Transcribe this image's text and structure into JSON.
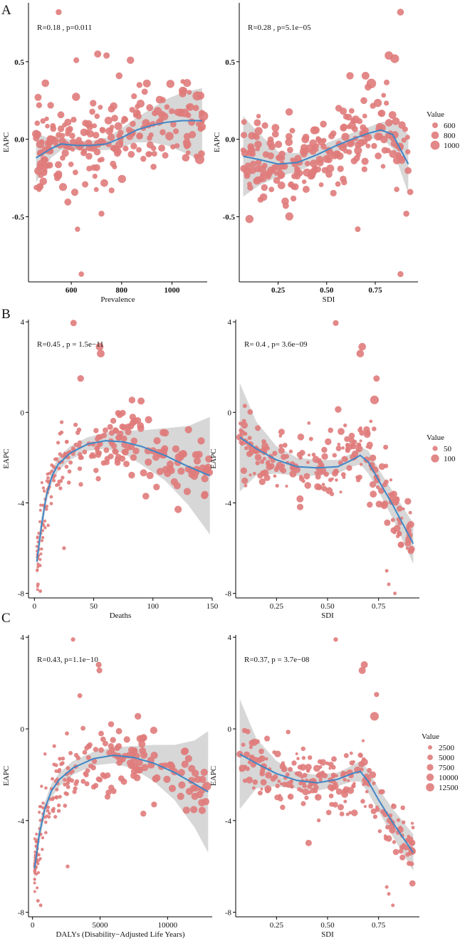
{
  "figure": {
    "panel_labels": [
      "A",
      "B",
      "C"
    ],
    "colors": {
      "point": "#e07b7b",
      "fit_line": "#3f86c6",
      "band": "#c9c9c9"
    }
  },
  "chart_data": [
    {
      "type": "scatter",
      "panel": "A",
      "ylabel": "EAPC",
      "xlabel": "Prevalence",
      "x_ticks": [
        600,
        800,
        1000
      ],
      "y_ticks": [
        -0.5,
        0.0,
        0.5
      ],
      "y_tick_labels": [
        "-0.5",
        "0.0",
        "0.5"
      ],
      "xlim": [
        430,
        1140
      ],
      "ylim": [
        -0.92,
        0.88
      ],
      "annotation": "R=0.18 , p=0.011",
      "size_field": "Value",
      "smooth": {
        "x": [
          460,
          520,
          560,
          620,
          680,
          740,
          800,
          860,
          920,
          980,
          1040,
          1120
        ],
        "y": [
          -0.12,
          -0.06,
          -0.03,
          -0.04,
          -0.04,
          -0.03,
          0.01,
          0.06,
          0.09,
          0.11,
          0.12,
          0.12
        ],
        "lower": [
          -0.28,
          -0.12,
          -0.07,
          -0.07,
          -0.07,
          -0.07,
          -0.05,
          -0.02,
          -0.02,
          -0.04,
          -0.08,
          -0.14
        ],
        "upper": [
          0.04,
          0.0,
          0.01,
          -0.01,
          -0.01,
          0.01,
          0.07,
          0.14,
          0.2,
          0.26,
          0.3,
          0.33
        ]
      },
      "outliers": [
        {
          "x": 550,
          "y": 0.82,
          "size": 720
        },
        {
          "x": 620,
          "y": 0.51,
          "size": 700
        },
        {
          "x": 705,
          "y": 0.55,
          "size": 840
        },
        {
          "x": 740,
          "y": 0.54,
          "size": 760
        },
        {
          "x": 790,
          "y": 0.41,
          "size": 820
        },
        {
          "x": 835,
          "y": 0.51,
          "size": 880
        },
        {
          "x": 760,
          "y": -0.33,
          "size": 700
        },
        {
          "x": 720,
          "y": -0.48,
          "size": 720
        },
        {
          "x": 625,
          "y": -0.58,
          "size": 640
        },
        {
          "x": 640,
          "y": -0.87,
          "size": 650
        },
        {
          "x": 900,
          "y": 0.36,
          "size": 920
        },
        {
          "x": 1050,
          "y": 0.17,
          "size": 1000
        },
        {
          "x": 1100,
          "y": 0.28,
          "size": 1090
        },
        {
          "x": 1125,
          "y": 0.15,
          "size": 1120
        },
        {
          "x": 1110,
          "y": -0.13,
          "size": 1110
        },
        {
          "x": 990,
          "y": 0.02,
          "size": 990
        }
      ]
    },
    {
      "type": "scatter",
      "panel": "A",
      "ylabel": "EAPC",
      "xlabel": "SDI",
      "x_ticks": [
        0.25,
        0.5,
        0.75
      ],
      "x_tick_labels": [
        "0.25",
        "0.50",
        "0.75"
      ],
      "y_ticks": [
        -0.5,
        0.0,
        0.5
      ],
      "y_tick_labels": [
        "-0.5",
        "0.0",
        "0.5"
      ],
      "xlim": [
        0.05,
        0.97
      ],
      "ylim": [
        -0.92,
        0.88
      ],
      "annotation": "R=0.28 , p=5.1e−05",
      "size_field": "Value",
      "smooth": {
        "x": [
          0.07,
          0.15,
          0.25,
          0.35,
          0.45,
          0.55,
          0.65,
          0.72,
          0.78,
          0.84,
          0.92
        ],
        "y": [
          -0.11,
          -0.13,
          -0.16,
          -0.15,
          -0.1,
          -0.04,
          0.01,
          0.04,
          0.06,
          0.03,
          -0.16
        ],
        "lower": [
          -0.37,
          -0.3,
          -0.24,
          -0.21,
          -0.15,
          -0.08,
          -0.03,
          0.0,
          0.01,
          -0.06,
          -0.35
        ],
        "upper": [
          0.15,
          0.04,
          -0.08,
          -0.09,
          -0.05,
          0.0,
          0.05,
          0.08,
          0.11,
          0.12,
          0.03
        ]
      },
      "outliers": [
        {
          "x": 0.88,
          "y": 0.82,
          "size": 700
        },
        {
          "x": 0.82,
          "y": 0.54,
          "size": 850
        },
        {
          "x": 0.85,
          "y": 0.52,
          "size": 880
        },
        {
          "x": 0.62,
          "y": 0.41,
          "size": 760
        },
        {
          "x": 0.7,
          "y": 0.41,
          "size": 800
        },
        {
          "x": 0.73,
          "y": 0.36,
          "size": 950
        },
        {
          "x": 0.93,
          "y": -0.34,
          "size": 650
        },
        {
          "x": 0.91,
          "y": -0.48,
          "size": 640
        },
        {
          "x": 0.66,
          "y": -0.58,
          "size": 600
        },
        {
          "x": 0.88,
          "y": -0.87,
          "size": 620
        },
        {
          "x": 0.07,
          "y": -0.07,
          "size": 560
        },
        {
          "x": 0.16,
          "y": -0.26,
          "size": 600
        }
      ]
    },
    {
      "type": "scatter",
      "panel": "B",
      "ylabel": "EAPC",
      "xlabel": "Deaths",
      "x_ticks": [
        0,
        50,
        100,
        150
      ],
      "y_ticks": [
        -8,
        -4,
        0,
        4
      ],
      "xlim": [
        -5,
        150
      ],
      "ylim": [
        -8.2,
        4.1
      ],
      "annotation": "R=0.45 , p = 1.5e−11",
      "size_field": "Value",
      "smooth": {
        "x": [
          2,
          6,
          10,
          15,
          20,
          30,
          45,
          60,
          75,
          90,
          110,
          130,
          148
        ],
        "y": [
          -6.6,
          -5.0,
          -3.7,
          -2.8,
          -2.3,
          -1.8,
          -1.4,
          -1.25,
          -1.3,
          -1.5,
          -1.9,
          -2.4,
          -2.8
        ],
        "lower": [
          -7.2,
          -5.4,
          -4.0,
          -3.1,
          -2.6,
          -2.1,
          -1.7,
          -1.6,
          -1.8,
          -2.3,
          -3.0,
          -4.1,
          -5.4
        ],
        "upper": [
          -6.0,
          -4.6,
          -3.4,
          -2.5,
          -2.0,
          -1.5,
          -1.1,
          -0.9,
          -0.8,
          -0.8,
          -0.7,
          -0.6,
          -0.2
        ]
      },
      "outliers": [
        {
          "x": 33,
          "y": 3.95,
          "size": 70
        },
        {
          "x": 55,
          "y": 2.9,
          "size": 95
        },
        {
          "x": 56,
          "y": 2.6,
          "size": 95
        },
        {
          "x": 39,
          "y": 1.5,
          "size": 75
        },
        {
          "x": 90,
          "y": 0.5,
          "size": 85
        },
        {
          "x": 72,
          "y": -0.1,
          "size": 80
        },
        {
          "x": 145,
          "y": -2.6,
          "size": 115
        },
        {
          "x": 110,
          "y": -1.6,
          "size": 80
        },
        {
          "x": 103,
          "y": -3.3,
          "size": 75
        },
        {
          "x": 94,
          "y": -3.7,
          "size": 80
        },
        {
          "x": 25,
          "y": -6.0,
          "size": 20
        },
        {
          "x": 5,
          "y": -7.9,
          "size": 15
        },
        {
          "x": 3,
          "y": -7.6,
          "size": 15
        }
      ]
    },
    {
      "type": "scatter",
      "panel": "B",
      "ylabel": "EAPC",
      "xlabel": "SDI",
      "x_ticks": [
        0.25,
        0.5,
        0.75
      ],
      "x_tick_labels": [
        "0.25",
        "0.50",
        "0.75"
      ],
      "y_ticks": [
        -8,
        -4,
        0,
        4
      ],
      "xlim": [
        0.05,
        0.95
      ],
      "ylim": [
        -8.2,
        4.1
      ],
      "annotation": "R= 0.4 , p= 3.6e−09",
      "size_field": "Value",
      "smooth": {
        "x": [
          0.07,
          0.15,
          0.25,
          0.35,
          0.45,
          0.55,
          0.62,
          0.66,
          0.7,
          0.75,
          0.82,
          0.92
        ],
        "y": [
          -1.1,
          -1.6,
          -2.1,
          -2.4,
          -2.45,
          -2.4,
          -2.1,
          -1.9,
          -2.2,
          -3.0,
          -4.1,
          -5.8
        ],
        "lower": [
          -3.5,
          -2.8,
          -2.7,
          -2.8,
          -2.8,
          -2.7,
          -2.4,
          -2.3,
          -2.7,
          -3.5,
          -4.7,
          -6.7
        ],
        "upper": [
          1.3,
          -0.4,
          -1.5,
          -2.0,
          -2.1,
          -2.1,
          -1.8,
          -1.5,
          -1.7,
          -2.5,
          -3.5,
          -4.9
        ]
      },
      "outliers": [
        {
          "x": 0.54,
          "y": 3.95,
          "size": 60
        },
        {
          "x": 0.67,
          "y": 2.9,
          "size": 90
        },
        {
          "x": 0.66,
          "y": 2.6,
          "size": 90
        },
        {
          "x": 0.74,
          "y": 1.5,
          "size": 70
        },
        {
          "x": 0.73,
          "y": 0.55,
          "size": 110
        },
        {
          "x": 0.07,
          "y": -1.1,
          "size": 80
        },
        {
          "x": 0.17,
          "y": -2.8,
          "size": 60
        },
        {
          "x": 0.83,
          "y": -8.0,
          "size": 20
        },
        {
          "x": 0.8,
          "y": -7.6,
          "size": 20
        },
        {
          "x": 0.79,
          "y": -7.0,
          "size": 20
        }
      ]
    },
    {
      "type": "scatter",
      "panel": "C",
      "ylabel": "EAPC",
      "xlabel": "DALYs (Disability−Adjusted Life Years)",
      "x_ticks": [
        0,
        5000,
        10000
      ],
      "y_ticks": [
        -8,
        -4,
        0,
        4
      ],
      "xlim": [
        -300,
        13300
      ],
      "ylim": [
        -8.2,
        4.1
      ],
      "annotation": "R=0.43, p=1.1e−10",
      "size_field": "Value",
      "smooth": {
        "x": [
          150,
          500,
          900,
          1400,
          2000,
          3000,
          4500,
          6000,
          7500,
          9000,
          10500,
          12000,
          13000
        ],
        "y": [
          -6.1,
          -4.6,
          -3.5,
          -2.7,
          -2.2,
          -1.7,
          -1.3,
          -1.15,
          -1.25,
          -1.5,
          -1.9,
          -2.4,
          -2.75
        ],
        "lower": [
          -6.7,
          -5.0,
          -3.8,
          -3.0,
          -2.5,
          -2.0,
          -1.6,
          -1.5,
          -1.75,
          -2.3,
          -3.1,
          -4.3,
          -5.4
        ],
        "upper": [
          -5.5,
          -4.2,
          -3.2,
          -2.4,
          -1.9,
          -1.4,
          -1.0,
          -0.8,
          -0.75,
          -0.7,
          -0.7,
          -0.5,
          -0.1
        ]
      },
      "outliers": [
        {
          "x": 3000,
          "y": 3.9,
          "size": 3000
        },
        {
          "x": 4900,
          "y": 2.8,
          "size": 6000
        },
        {
          "x": 4950,
          "y": 2.55,
          "size": 6000
        },
        {
          "x": 3500,
          "y": 1.45,
          "size": 4000
        },
        {
          "x": 7800,
          "y": 0.55,
          "size": 8000
        },
        {
          "x": 6400,
          "y": -0.1,
          "size": 7000
        },
        {
          "x": 12900,
          "y": -2.5,
          "size": 12500
        },
        {
          "x": 9800,
          "y": -1.6,
          "size": 7500
        },
        {
          "x": 9000,
          "y": -3.3,
          "size": 6000
        },
        {
          "x": 8200,
          "y": -3.7,
          "size": 6500
        },
        {
          "x": 2600,
          "y": -6.0,
          "size": 1500
        },
        {
          "x": 600,
          "y": -7.7,
          "size": 1000
        },
        {
          "x": 400,
          "y": -7.5,
          "size": 1000
        }
      ]
    },
    {
      "type": "scatter",
      "panel": "C",
      "ylabel": "EAPC",
      "xlabel": "SDI",
      "x_ticks": [
        0.25,
        0.5,
        0.75
      ],
      "x_tick_labels": [
        "0.25",
        "0.50",
        "0.75"
      ],
      "y_ticks": [
        -8,
        -4,
        0,
        4
      ],
      "xlim": [
        0.05,
        0.95
      ],
      "ylim": [
        -8.2,
        4.1
      ],
      "annotation": "R=0.37, p = 3.7e−08",
      "size_field": "Value",
      "smooth": {
        "x": [
          0.07,
          0.15,
          0.25,
          0.35,
          0.45,
          0.55,
          0.62,
          0.66,
          0.7,
          0.75,
          0.82,
          0.92
        ],
        "y": [
          -1.1,
          -1.5,
          -1.95,
          -2.25,
          -2.35,
          -2.2,
          -1.95,
          -1.85,
          -2.3,
          -3.1,
          -4.1,
          -5.4
        ],
        "lower": [
          -3.5,
          -2.6,
          -2.5,
          -2.6,
          -2.7,
          -2.5,
          -2.3,
          -2.3,
          -2.8,
          -3.6,
          -4.7,
          -6.2
        ],
        "upper": [
          1.3,
          -0.4,
          -1.4,
          -1.9,
          -2.0,
          -1.9,
          -1.6,
          -1.4,
          -1.8,
          -2.6,
          -3.5,
          -4.6
        ]
      },
      "outliers": [
        {
          "x": 0.54,
          "y": 3.9,
          "size": 3000
        },
        {
          "x": 0.68,
          "y": 2.8,
          "size": 8000
        },
        {
          "x": 0.67,
          "y": 2.55,
          "size": 8000
        },
        {
          "x": 0.74,
          "y": 1.5,
          "size": 4000
        },
        {
          "x": 0.73,
          "y": 0.55,
          "size": 11000
        },
        {
          "x": 0.07,
          "y": -1.1,
          "size": 7000
        },
        {
          "x": 0.17,
          "y": -2.8,
          "size": 3500
        },
        {
          "x": 0.82,
          "y": -7.7,
          "size": 1000
        },
        {
          "x": 0.8,
          "y": -7.2,
          "size": 1000
        },
        {
          "x": 0.79,
          "y": -6.9,
          "size": 1000
        }
      ]
    }
  ],
  "legends": [
    {
      "panel": "A",
      "title": "Value",
      "labels": [
        "600",
        "800",
        "1000"
      ]
    },
    {
      "panel": "B",
      "title": "Value",
      "labels": [
        "50",
        "100"
      ]
    },
    {
      "panel": "C",
      "title": "Value",
      "labels": [
        "2500",
        "5000",
        "7500",
        "10000",
        "12500"
      ]
    }
  ]
}
